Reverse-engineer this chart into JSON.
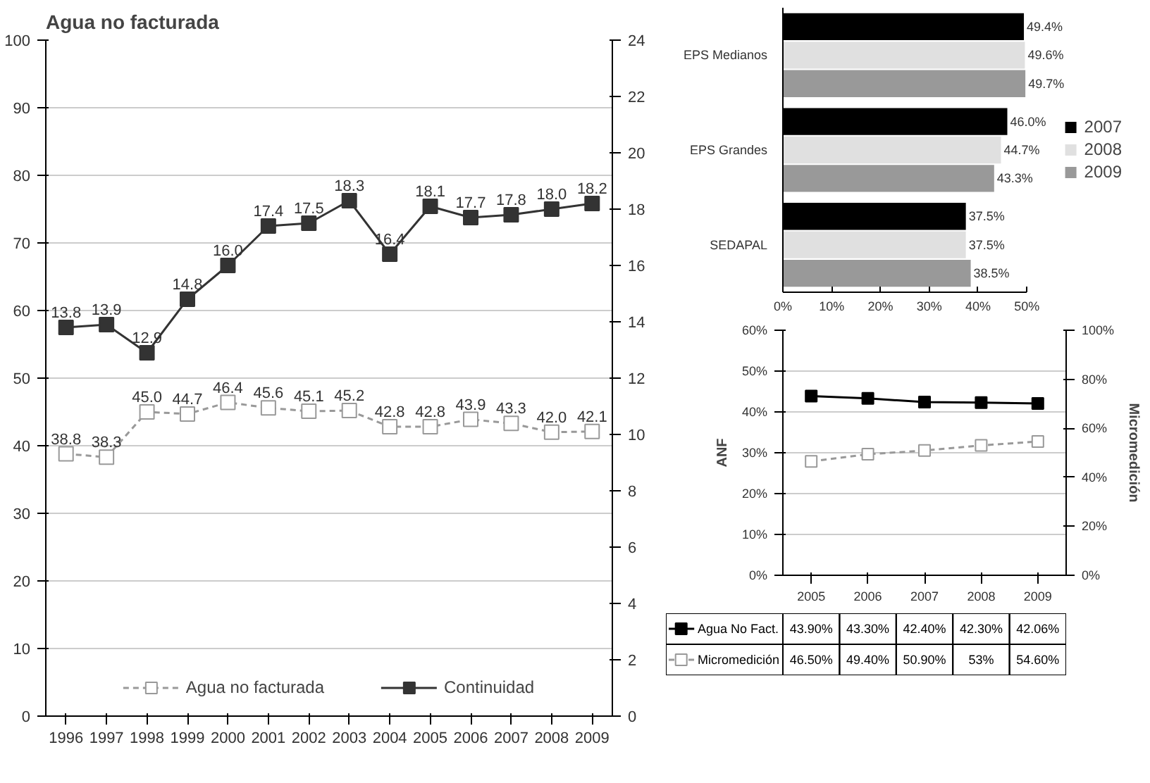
{
  "chart_data": [
    {
      "type": "line",
      "title": "Agua no facturada",
      "categories": [
        "1996",
        "1997",
        "1998",
        "1999",
        "2000",
        "2001",
        "2002",
        "2003",
        "2004",
        "2005",
        "2006",
        "2007",
        "2008",
        "2009"
      ],
      "series": [
        {
          "name": "Agua no facturada",
          "color": "#999999",
          "marker": "square_open",
          "line_style": "dashed",
          "values": [
            38.8,
            38.3,
            45.0,
            44.7,
            46.4,
            45.6,
            45.1,
            45.2,
            42.8,
            42.8,
            43.9,
            43.3,
            42.0,
            42.1
          ],
          "value_labels": [
            "38.8",
            "38.3",
            "45.0",
            "44.7",
            "46.4",
            "45.6",
            "45.1",
            "45.2",
            "42.8",
            "42.8",
            "43.9",
            "43.3",
            "42.0",
            "42.1"
          ]
        },
        {
          "name": "Continuidad",
          "color": "#333333",
          "marker": "square",
          "line_style": "solid",
          "axis": "y2",
          "values": [
            13.8,
            13.9,
            12.9,
            14.8,
            16.0,
            17.4,
            17.5,
            18.3,
            16.4,
            18.1,
            17.7,
            17.8,
            18.0,
            18.2
          ],
          "value_labels": [
            "13.8",
            "13.9",
            "12.9",
            "14.8",
            "16.0",
            "17.4",
            "17.5",
            "18.3",
            "16.4",
            "18.1",
            "17.7",
            "17.8",
            "18.0",
            "18.2"
          ]
        }
      ],
      "ylim": [
        0,
        100
      ],
      "yticks": [
        0,
        10,
        20,
        30,
        40,
        50,
        60,
        70,
        80,
        90,
        100
      ],
      "y2lim": [
        0,
        24
      ],
      "y2ticks": [
        0,
        2,
        4,
        6,
        8,
        10,
        12,
        14,
        16,
        18,
        20,
        22,
        24
      ],
      "grid": "y",
      "legend": "bottom"
    },
    {
      "type": "bar",
      "orientation": "horizontal",
      "categories": [
        "EPS Medianos",
        "EPS Grandes",
        "SEDAPAL"
      ],
      "series": [
        {
          "name": "2007",
          "color": "#000000",
          "values": [
            49.4,
            46.0,
            37.5
          ],
          "value_labels": [
            "49.4%",
            "46.0%",
            "37.5%"
          ]
        },
        {
          "name": "2008",
          "color": "#e0e0e0",
          "values": [
            49.6,
            44.7,
            37.5
          ],
          "value_labels": [
            "49.6%",
            "44.7%",
            "37.5%"
          ]
        },
        {
          "name": "2009",
          "color": "#999999",
          "values": [
            49.7,
            43.3,
            38.5
          ],
          "value_labels": [
            "49.7%",
            "43.3%",
            "38.5%"
          ]
        }
      ],
      "xlim": [
        0,
        50
      ],
      "xticks": [
        {
          "value": 0,
          "label": "0%"
        },
        {
          "value": 10,
          "label": "10%"
        },
        {
          "value": 20,
          "label": "20%"
        },
        {
          "value": 30,
          "label": "30%"
        },
        {
          "value": 40,
          "label": "40%"
        },
        {
          "value": 50,
          "label": "50%"
        }
      ],
      "legend": "right"
    },
    {
      "type": "line",
      "categories": [
        "2005",
        "2006",
        "2007",
        "2008",
        "2009"
      ],
      "ylabel": "ANF",
      "y2label": "Micromedición",
      "series": [
        {
          "name": "Agua No Fact.",
          "color": "#000000",
          "marker": "square",
          "line_style": "solid",
          "values": [
            43.9,
            43.3,
            42.4,
            42.3,
            42.06
          ],
          "value_labels": [
            "43.90%",
            "43.30%",
            "42.40%",
            "42.30%",
            "42.06%"
          ]
        },
        {
          "name": "Micromedición",
          "color": "#999999",
          "marker": "square_open",
          "line_style": "dashed",
          "axis": "y2",
          "values": [
            46.5,
            49.4,
            50.9,
            53,
            54.6
          ],
          "value_labels": [
            "46.50%",
            "49.40%",
            "50.90%",
            "53%",
            "54.60%"
          ]
        }
      ],
      "ylim": [
        0,
        60
      ],
      "yticks": [
        {
          "value": 0,
          "label": "0%"
        },
        {
          "value": 10,
          "label": "10%"
        },
        {
          "value": 20,
          "label": "20%"
        },
        {
          "value": 30,
          "label": "30%"
        },
        {
          "value": 40,
          "label": "40%"
        },
        {
          "value": 50,
          "label": "50%"
        },
        {
          "value": 60,
          "label": "60%"
        }
      ],
      "y2lim": [
        0,
        100
      ],
      "y2ticks": [
        {
          "value": 0,
          "label": "0%"
        },
        {
          "value": 20,
          "label": "20%"
        },
        {
          "value": 40,
          "label": "40%"
        },
        {
          "value": 60,
          "label": "60%"
        },
        {
          "value": 80,
          "label": "80%"
        },
        {
          "value": 100,
          "label": "100%"
        }
      ],
      "grid": "y",
      "legend": "bottom"
    }
  ]
}
